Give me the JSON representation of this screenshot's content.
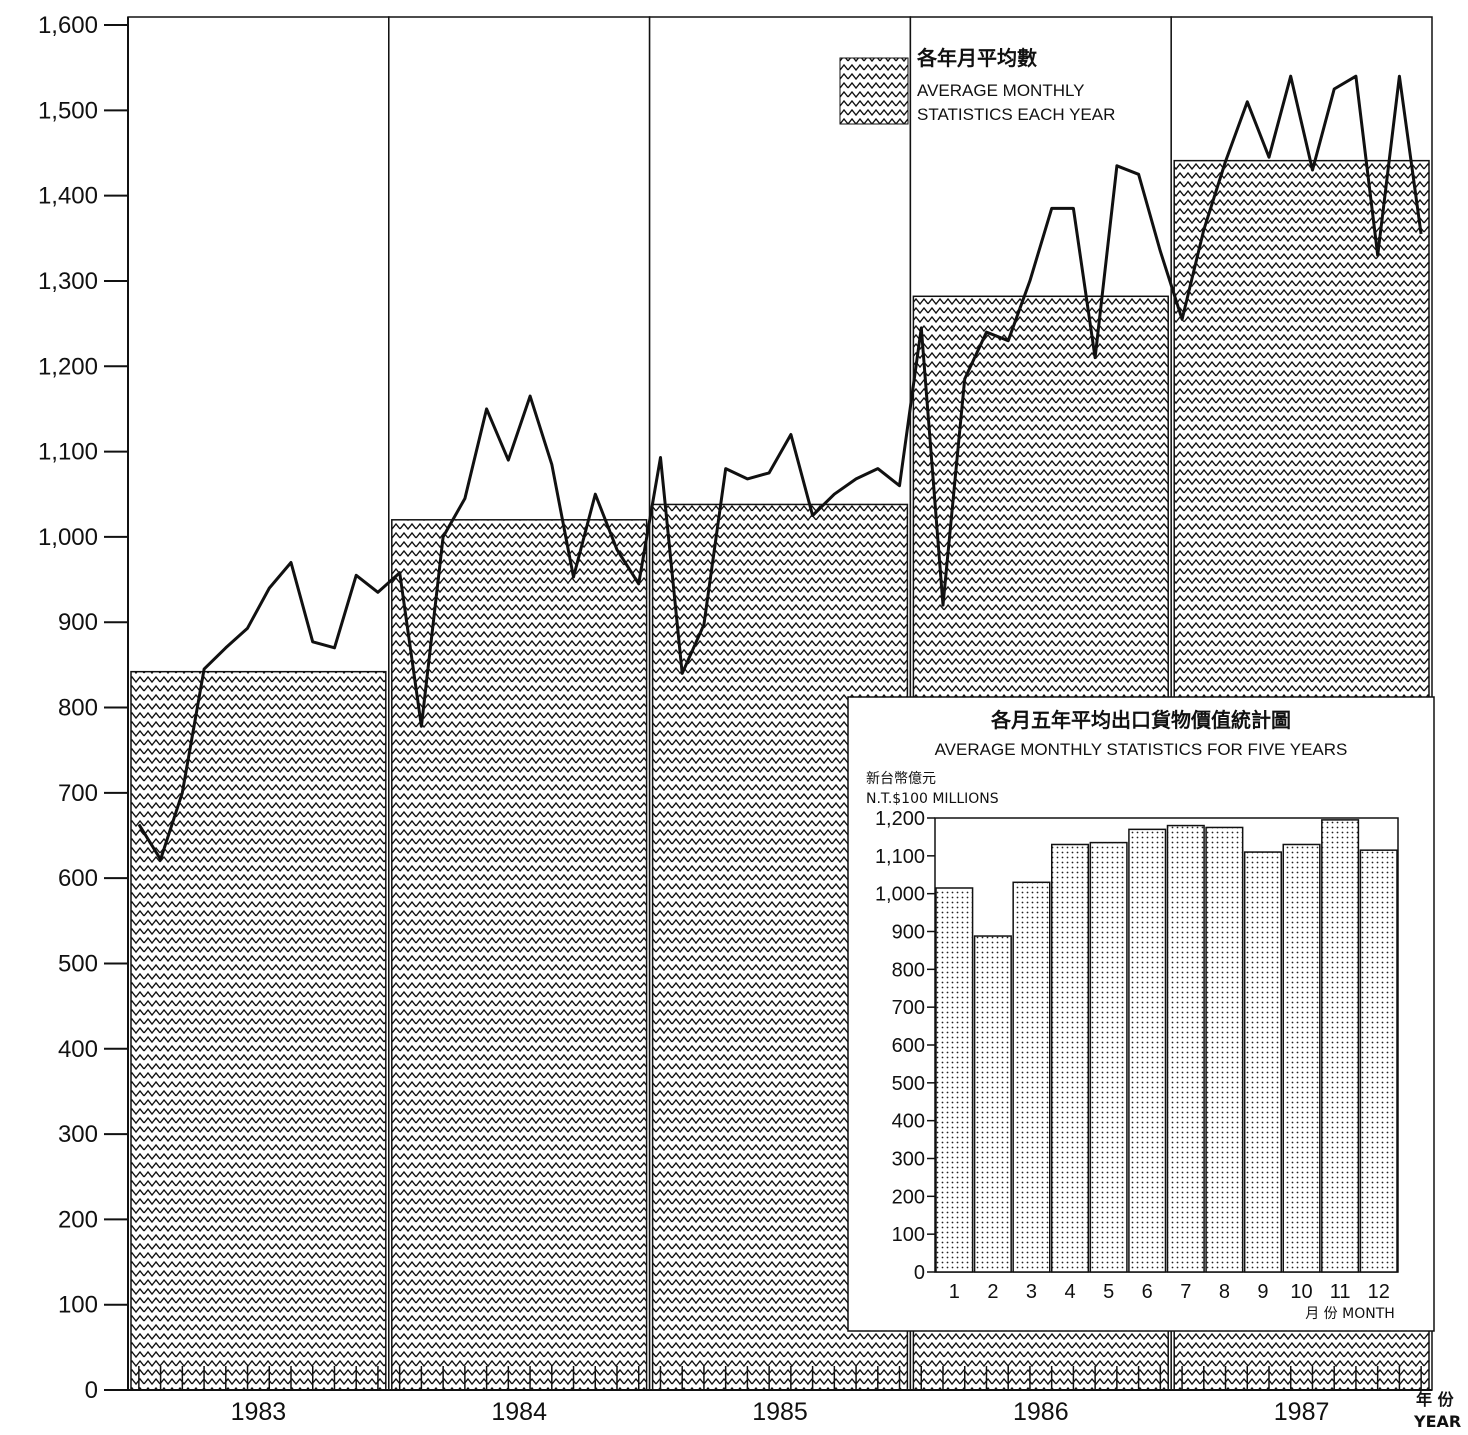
{
  "chart_data": [
    {
      "type": "bar+line",
      "title": "",
      "xlabel": "年 份",
      "xlabel_en": "YEAR",
      "ylabel": "",
      "ylim": [
        0,
        1600
      ],
      "y_ticks": [
        "0",
        "100",
        "200",
        "300",
        "400",
        "500",
        "600",
        "700",
        "800",
        "900",
        "1,000",
        "1,100",
        "1,200",
        "1,300",
        "1,400",
        "1,500",
        "1,600"
      ],
      "categories": [
        "1983",
        "1984",
        "1985",
        "1986",
        "1987"
      ],
      "annual_monthly_average": [
        842,
        1020,
        1038,
        1282,
        1441
      ],
      "legend": {
        "label_cn": "各年月平均數",
        "label_en_line1": "AVERAGE MONTHLY",
        "label_en_line2": "STATISTICS EACH YEAR",
        "placement": "top-right"
      },
      "monthly_series": {
        "name": "",
        "values": [
          663,
          622,
          700,
          845,
          870,
          893,
          940,
          970,
          877,
          870,
          955,
          935,
          958,
          778,
          1000,
          1045,
          1150,
          1090,
          1165,
          1085,
          953,
          1050,
          985,
          945,
          1093,
          840,
          897,
          1080,
          1068,
          1075,
          1120,
          1025,
          1050,
          1068,
          1080,
          1060,
          1245,
          920,
          1185,
          1240,
          1230,
          1300,
          1385,
          1385,
          1210,
          1435,
          1425,
          1335,
          1255,
          1360,
          1440,
          1510,
          1445,
          1540,
          1430,
          1525,
          1540,
          1330,
          1540,
          1355
        ]
      }
    },
    {
      "type": "bar",
      "title": "各月五年平均出口貨物價值統計圖",
      "subtitle": "AVERAGE MONTHLY STATISTICS FOR FIVE YEARS",
      "ylabel_cn": "新台幣億元",
      "ylabel_en": "N.T.$100 MILLIONS",
      "xlabel": "月 份 MONTH",
      "ylim": [
        0,
        1200
      ],
      "y_ticks": [
        "0",
        "100",
        "200",
        "300",
        "400",
        "500",
        "600",
        "700",
        "800",
        "900",
        "1,000",
        "1,100",
        "1,200"
      ],
      "categories": [
        "1",
        "2",
        "3",
        "4",
        "5",
        "6",
        "7",
        "8",
        "9",
        "10",
        "11",
        "12"
      ],
      "values": [
        1015,
        888,
        1030,
        1130,
        1135,
        1170,
        1180,
        1175,
        1110,
        1130,
        1195,
        1115
      ]
    }
  ]
}
